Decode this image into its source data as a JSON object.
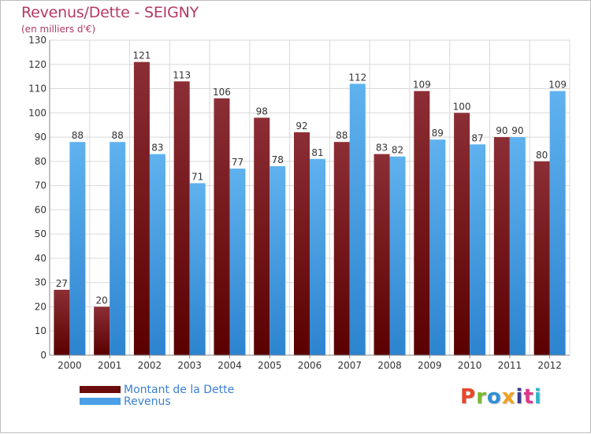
{
  "title": "Revenus/Dette - SEIGNY",
  "subtitle": "(en milliers d'€)",
  "legend": [
    {
      "label": "Montant de la Dette",
      "color": "#6b0d0d"
    },
    {
      "label": "Revenus",
      "color": "#4a9fe6"
    }
  ],
  "logo": "Proxiti",
  "logo_colors": [
    "#e8452a",
    "#7cb82f",
    "#2f8fd6",
    "#f2a21f",
    "#3b3b8f",
    "#d93b8a",
    "#2fb5c9"
  ],
  "colors": {
    "debt_top": "#8c2e35",
    "debt_bottom": "#5a0000",
    "rev_top": "#5fb2ee",
    "rev_bottom": "#2d84cf",
    "grid": "#d9d9d9",
    "plot_bg": "#ffffff",
    "title": "#b53863"
  },
  "chart_data": {
    "type": "bar",
    "categories": [
      "2000",
      "2001",
      "2002",
      "2003",
      "2004",
      "2005",
      "2006",
      "2007",
      "2008",
      "2009",
      "2010",
      "2011",
      "2012"
    ],
    "series": [
      {
        "name": "Montant de la Dette",
        "values": [
          27,
          20,
          121,
          113,
          106,
          98,
          92,
          88,
          83,
          109,
          100,
          90,
          80
        ]
      },
      {
        "name": "Revenus",
        "values": [
          88,
          88,
          83,
          71,
          77,
          78,
          81,
          112,
          82,
          89,
          87,
          90,
          109
        ]
      }
    ],
    "ylim": [
      0,
      130
    ],
    "yticks": [
      0,
      10,
      20,
      30,
      40,
      50,
      60,
      70,
      80,
      90,
      100,
      110,
      120,
      130
    ],
    "grid": true,
    "legend_position": "bottom-left"
  }
}
